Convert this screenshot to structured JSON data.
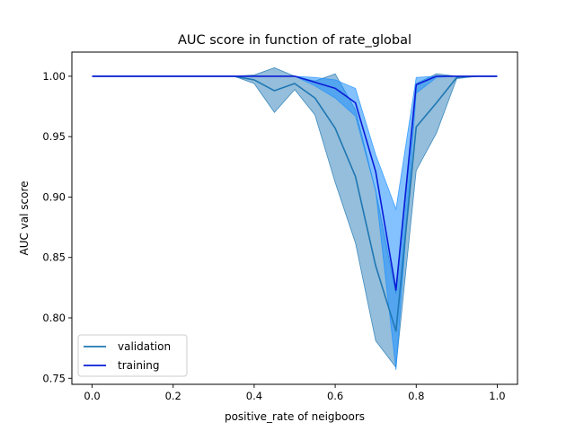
{
  "chart_data": {
    "type": "line",
    "title": "AUC score in function of rate_global",
    "xlabel": "positive_rate of neigboors",
    "ylabel": "AUC val score",
    "xlim": [
      -0.05,
      1.05
    ],
    "ylim": [
      0.745,
      1.02
    ],
    "xticks": [
      0.0,
      0.2,
      0.4,
      0.6,
      0.8,
      1.0
    ],
    "xtick_labels": [
      "0.0",
      "0.2",
      "0.4",
      "0.6",
      "0.8",
      "1.0"
    ],
    "yticks": [
      0.75,
      0.8,
      0.85,
      0.9,
      0.95,
      1.0
    ],
    "ytick_labels": [
      "0.75",
      "0.80",
      "0.85",
      "0.90",
      "0.95",
      "1.00"
    ],
    "grid": false,
    "legend_position": "lower-left",
    "x": [
      0.0,
      0.05,
      0.1,
      0.15,
      0.2,
      0.25,
      0.3,
      0.35,
      0.4,
      0.45,
      0.5,
      0.55,
      0.6,
      0.65,
      0.7,
      0.75,
      0.8,
      0.85,
      0.9,
      0.95,
      1.0
    ],
    "series": [
      {
        "name": "validation",
        "color": "#1f77b4",
        "band_color": "#1f77b4",
        "values": [
          1.0,
          1.0,
          1.0,
          1.0,
          1.0,
          1.0,
          1.0,
          1.0,
          0.997,
          0.988,
          0.994,
          0.982,
          0.957,
          0.917,
          0.843,
          0.789,
          0.958,
          0.978,
          0.999,
          1.0,
          1.0
        ],
        "band_lower": [
          1.0,
          1.0,
          1.0,
          1.0,
          1.0,
          1.0,
          1.0,
          1.0,
          0.994,
          0.97,
          0.989,
          0.968,
          0.912,
          0.862,
          0.781,
          0.759,
          0.922,
          0.953,
          0.998,
          1.0,
          1.0
        ],
        "band_upper": [
          1.0,
          1.0,
          1.0,
          1.0,
          1.0,
          1.0,
          1.0,
          1.0,
          1.001,
          1.007,
          1.0,
          0.996,
          1.002,
          0.972,
          0.905,
          0.82,
          0.994,
          1.002,
          1.0,
          1.0,
          1.0
        ]
      },
      {
        "name": "training",
        "color": "#0a1bd6",
        "band_color": "#1e90ff",
        "values": [
          1.0,
          1.0,
          1.0,
          1.0,
          1.0,
          1.0,
          1.0,
          1.0,
          1.0,
          1.0,
          1.0,
          0.995,
          0.99,
          0.978,
          0.921,
          0.823,
          0.993,
          1.0,
          1.0,
          1.0,
          1.0
        ],
        "band_lower": [
          1.0,
          1.0,
          1.0,
          1.0,
          1.0,
          1.0,
          1.0,
          1.0,
          1.0,
          1.0,
          1.0,
          0.992,
          0.982,
          0.967,
          0.905,
          0.757,
          0.986,
          0.999,
          1.0,
          1.0,
          1.0
        ],
        "band_upper": [
          1.0,
          1.0,
          1.0,
          1.0,
          1.0,
          1.0,
          1.0,
          1.0,
          1.0,
          1.0,
          1.0,
          0.999,
          0.997,
          0.99,
          0.935,
          0.89,
          0.999,
          1.0,
          1.0,
          1.0,
          1.0
        ]
      }
    ]
  }
}
